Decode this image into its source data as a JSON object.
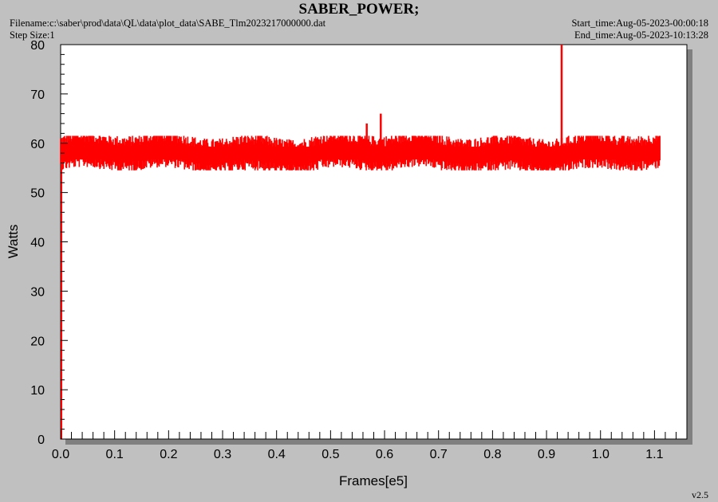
{
  "header": {
    "title": "SABER_POWER;",
    "filename": "Filename:c:\\saber\\prod\\data\\QL\\data\\plot_data\\SABE_Tlm2023217000000.dat",
    "step_size": "Step Size:1",
    "start_time": "Start_time:Aug-05-2023-00:00:18",
    "end_time": "End_time:Aug-05-2023-10:13:28"
  },
  "version": "v2.5",
  "colors": {
    "series": "#ff0000",
    "plot_bg": "#ffffff",
    "shadow": "#808080",
    "page_bg": "#c0c0c0"
  },
  "chart_data": {
    "type": "line",
    "title": "SABER_POWER;",
    "xlabel": "Frames[e5]",
    "ylabel": "Watts",
    "xlim": [
      0,
      1.16
    ],
    "ylim": [
      0,
      80
    ],
    "xticks": [
      "0.0",
      "0.1",
      "0.2",
      "0.3",
      "0.4",
      "0.5",
      "0.6",
      "0.7",
      "0.8",
      "0.9",
      "1.0",
      "1.1"
    ],
    "yticks": [
      "0",
      "10",
      "20",
      "30",
      "40",
      "50",
      "60",
      "70",
      "80"
    ],
    "grid": false,
    "series": [
      {
        "color": "#ff0000",
        "x_range": [
          0,
          1.11
        ],
        "mean": 58,
        "noise_band": [
          54.5,
          61.5
        ],
        "spikes": [
          {
            "x": 0.567,
            "y": 64
          },
          {
            "x": 0.593,
            "y": 66
          },
          {
            "x": 0.928,
            "y": 80
          }
        ]
      }
    ]
  }
}
